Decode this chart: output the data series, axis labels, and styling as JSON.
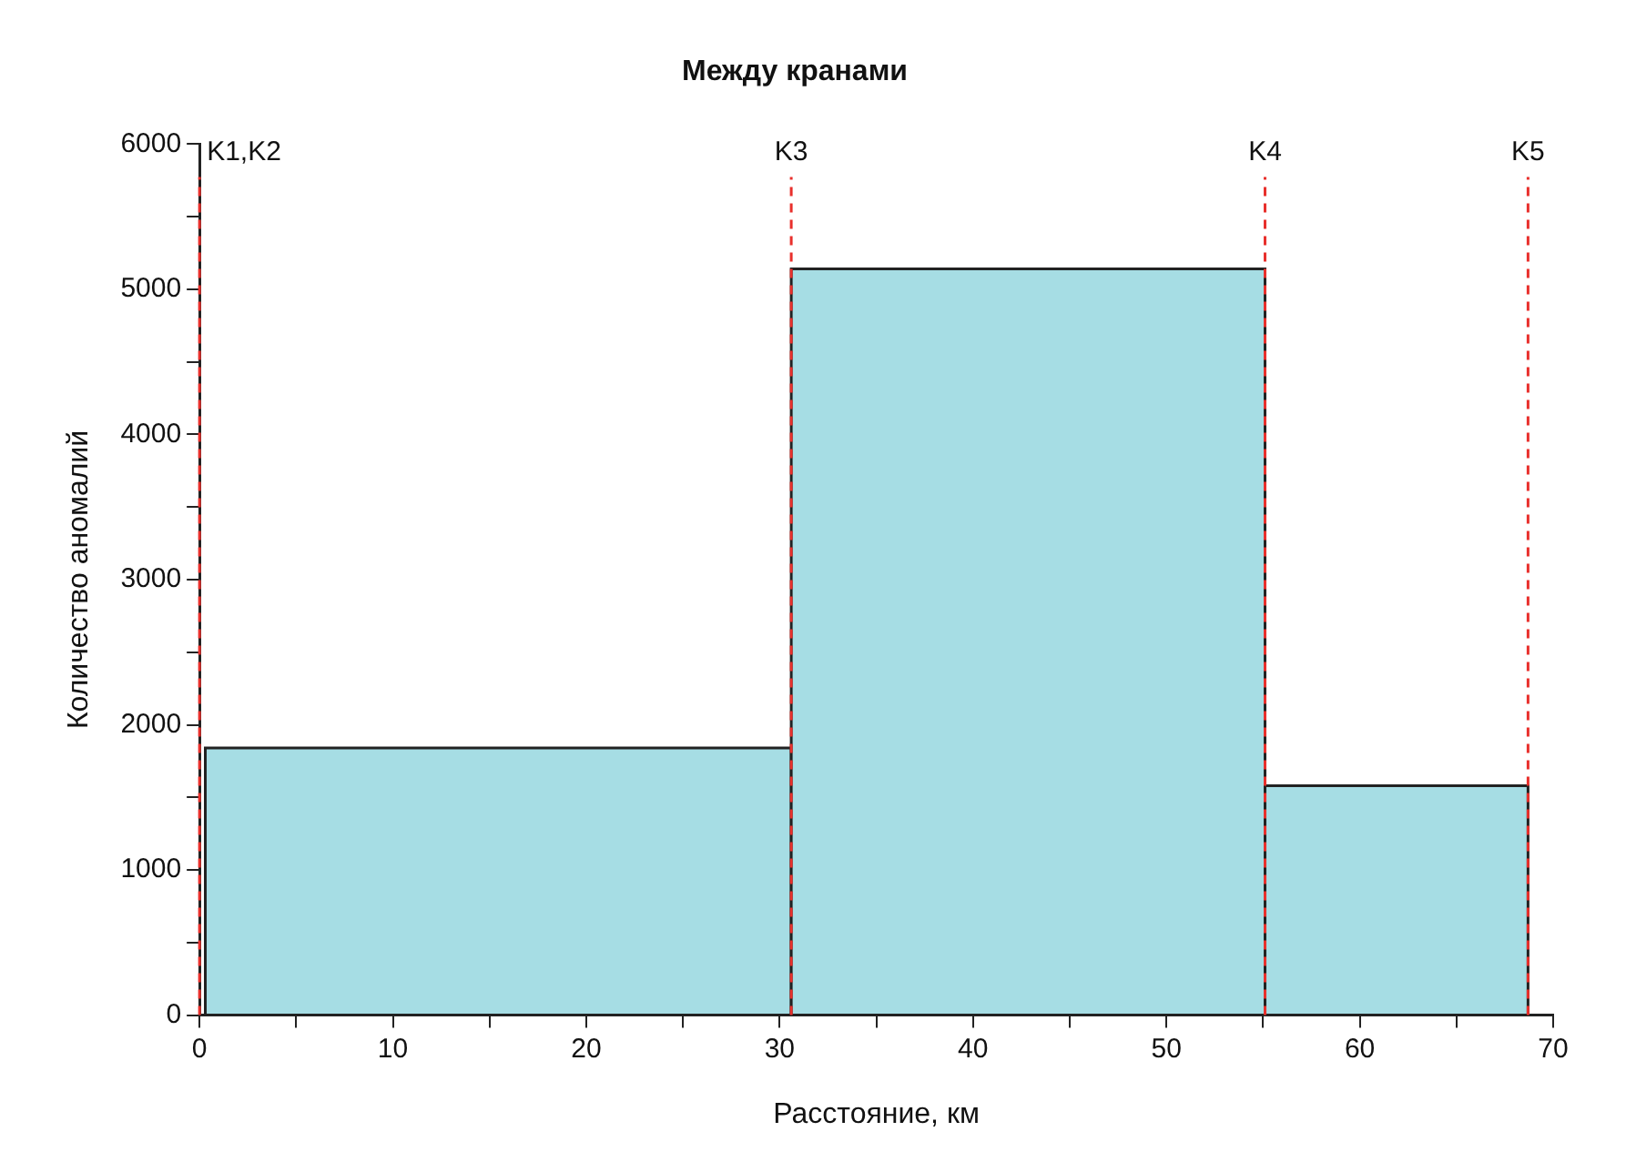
{
  "chart_data": {
    "type": "histogram",
    "title": "Между кранами",
    "xlabel": "Расстояние, км",
    "ylabel": "Количество аномалий",
    "bins": [
      0.3,
      30.6,
      55.1,
      68.7
    ],
    "values": [
      1840,
      5140,
      1580
    ],
    "color": "#a6dde4",
    "xlim": [
      0,
      70
    ],
    "xticks": [
      0,
      {
        "value": 5,
        "label": null
      },
      10,
      {
        "value": 15,
        "label": null
      },
      20,
      {
        "value": 25,
        "label": null
      },
      30,
      {
        "value": 35,
        "label": null
      },
      40,
      {
        "value": 45,
        "label": null
      },
      50,
      {
        "value": 55,
        "label": null
      },
      60,
      {
        "value": 65,
        "label": null
      },
      70
    ],
    "ylim": [
      0,
      6000
    ],
    "yticks": [
      0,
      {
        "value": 500,
        "label": null
      },
      1000,
      {
        "value": 1500,
        "label": null
      },
      2000,
      {
        "value": 2500,
        "label": null
      },
      3000,
      {
        "value": 3500,
        "label": null
      },
      4000,
      {
        "value": 4500,
        "label": null
      },
      5000,
      {
        "value": 5500,
        "label": null
      },
      6000
    ],
    "ref_lines": [
      {
        "axis": "x",
        "value": 0,
        "label": "K1,K2",
        "color": "#e8302c",
        "line_style": "dashed"
      },
      {
        "axis": "x",
        "value": 30.6,
        "label": "K3",
        "color": "#e8302c",
        "line_style": "dashed"
      },
      {
        "axis": "x",
        "value": 55.1,
        "label": "K4",
        "color": "#e8302c",
        "line_style": "dashed"
      },
      {
        "axis": "x",
        "value": 68.7,
        "label": "K5",
        "color": "#e8302c",
        "line_style": "dashed"
      }
    ],
    "grid": false,
    "legend": false
  }
}
